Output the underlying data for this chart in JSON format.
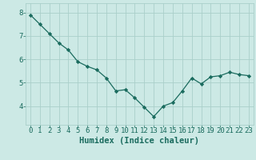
{
  "x": [
    0,
    1,
    2,
    3,
    4,
    5,
    6,
    7,
    8,
    9,
    10,
    11,
    12,
    13,
    14,
    15,
    16,
    17,
    18,
    19,
    20,
    21,
    22,
    23
  ],
  "y": [
    7.9,
    7.5,
    7.1,
    6.7,
    6.4,
    5.9,
    5.7,
    5.55,
    5.2,
    4.65,
    4.7,
    4.35,
    3.95,
    3.55,
    4.0,
    4.15,
    4.65,
    5.2,
    4.95,
    5.25,
    5.3,
    5.45,
    5.35,
    5.3
  ],
  "line_color": "#1a6b5e",
  "marker": "D",
  "marker_size": 2.2,
  "bg_color": "#cce9e5",
  "grid_color": "#aacfca",
  "axis_color": "#1a6b5e",
  "xlabel": "Humidex (Indice chaleur)",
  "xlabel_fontsize": 7.5,
  "tick_fontsize": 6.5,
  "ylim": [
    3.2,
    8.4
  ],
  "xlim": [
    -0.5,
    23.5
  ],
  "yticks": [
    4,
    5,
    6,
    7,
    8
  ],
  "xticks": [
    0,
    1,
    2,
    3,
    4,
    5,
    6,
    7,
    8,
    9,
    10,
    11,
    12,
    13,
    14,
    15,
    16,
    17,
    18,
    19,
    20,
    21,
    22,
    23
  ]
}
